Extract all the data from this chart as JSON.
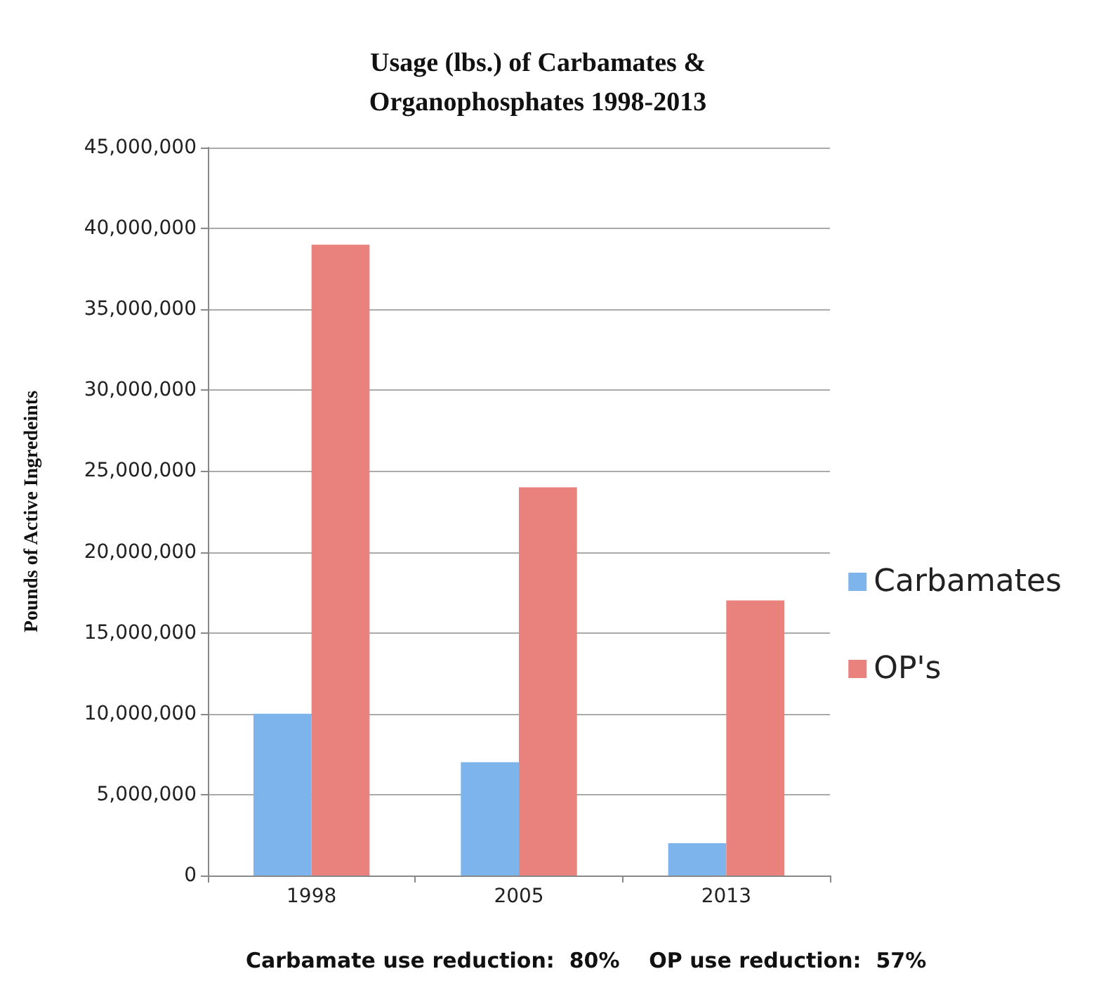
{
  "chart_data": {
    "type": "bar",
    "title": "Usage (lbs.) of Carbamates &\nOrganophosphates 1998-2013",
    "ylabel": "Pounds of Active Ingredeints",
    "categories": [
      "1998",
      "2005",
      "2013"
    ],
    "series": [
      {
        "name": "Carbamates",
        "color": "#7db4ec",
        "values": [
          10000000,
          7000000,
          2000000
        ]
      },
      {
        "name": "OP's",
        "color": "#e9817d",
        "values": [
          39000000,
          24000000,
          17000000
        ]
      }
    ],
    "ylim": [
      0,
      45000000
    ],
    "yticks": [
      0,
      {
        "value": 5000000,
        "label": "5,000,000"
      },
      {
        "value": 10000000,
        "label": "10,000,000"
      },
      {
        "value": 15000000,
        "label": "15,000,000"
      },
      {
        "value": 20000000,
        "label": "20,000,000"
      },
      {
        "value": 25000000,
        "label": "25,000,000"
      },
      {
        "value": 30000000,
        "label": "30,000,000"
      },
      {
        "value": 35000000,
        "label": "35,000,000"
      },
      {
        "value": 40000000,
        "label": "40,000,000"
      },
      {
        "value": 45000000,
        "label": "45,000,000"
      }
    ],
    "grid": "y",
    "legend": "right",
    "annotations": [
      "Carbamate use reduction:  80%    OP use reduction:  57%"
    ]
  }
}
